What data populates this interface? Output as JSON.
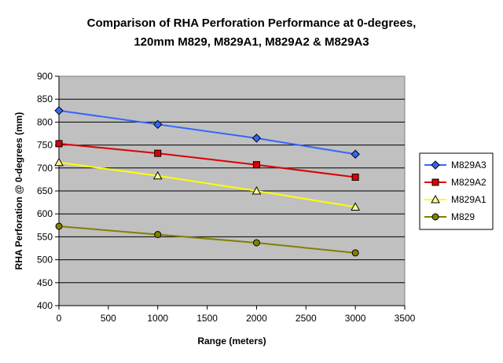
{
  "chart_data": {
    "type": "line",
    "title_lines": [
      "Comparison of RHA Perforation Performance at 0-degrees,",
      "120mm M829, M829A1, M829A2 & M829A3"
    ],
    "xlabel": "Range (meters)",
    "ylabel": "RHA Perforation @ 0-degrees (mm)",
    "xlim": [
      0,
      3500
    ],
    "ylim": [
      400,
      900
    ],
    "x_ticks": [
      "0",
      "500",
      "1000",
      "1500",
      "2000",
      "2500",
      "3000",
      "3500"
    ],
    "y_ticks": [
      "400",
      "450",
      "500",
      "550",
      "600",
      "650",
      "700",
      "750",
      "800",
      "850",
      "900"
    ],
    "x": [
      0,
      1000,
      2000,
      3000
    ],
    "grid": "horizontal",
    "legend_position": "right",
    "plot_background": "#c0c0c0",
    "series": [
      {
        "name": "M829A3",
        "values": [
          825,
          795,
          765,
          730
        ],
        "color": "#3366ff",
        "marker": "diamond",
        "marker_fill": "#3366ff"
      },
      {
        "name": "M829A2",
        "values": [
          753,
          732,
          707,
          680
        ],
        "color": "#dd0000",
        "marker": "square",
        "marker_fill": "#dd0000"
      },
      {
        "name": "M829A1",
        "values": [
          712,
          683,
          650,
          615
        ],
        "color": "#ffff00",
        "marker": "triangle",
        "marker_fill": "#ffff99"
      },
      {
        "name": "M829",
        "values": [
          573,
          555,
          537,
          515
        ],
        "color": "#808000",
        "marker": "circle",
        "marker_fill": "#808000"
      }
    ]
  }
}
